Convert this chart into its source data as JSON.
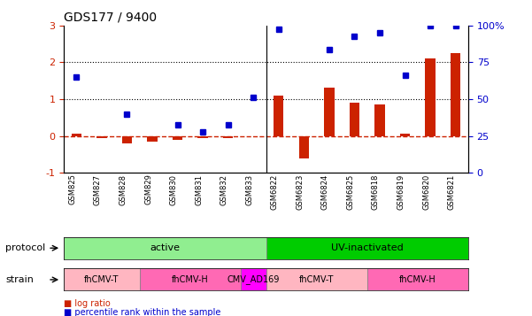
{
  "title": "GDS177 / 9400",
  "samples": [
    "GSM825",
    "GSM827",
    "GSM828",
    "GSM829",
    "GSM830",
    "GSM831",
    "GSM832",
    "GSM833",
    "GSM6822",
    "GSM6823",
    "GSM6824",
    "GSM6825",
    "GSM6818",
    "GSM6819",
    "GSM6820",
    "GSM6821"
  ],
  "log_ratio": [
    0.05,
    -0.05,
    -0.2,
    -0.15,
    -0.1,
    -0.05,
    -0.05,
    0.0,
    1.1,
    -0.6,
    1.3,
    0.9,
    0.85,
    0.05,
    2.1,
    2.25
  ],
  "pct_rank": [
    1.6,
    null,
    0.6,
    null,
    0.3,
    0.1,
    0.3,
    1.05,
    2.9,
    null,
    2.35,
    2.7,
    2.8,
    1.65,
    3.0,
    3.0
  ],
  "ylim": [
    -1,
    3
  ],
  "y2lim": [
    0,
    100
  ],
  "yticks": [
    -1,
    0,
    1,
    2,
    3
  ],
  "y2ticks": [
    0,
    25,
    50,
    75,
    100
  ],
  "y2ticklabels": [
    "0",
    "25",
    "50",
    "75",
    "100%"
  ],
  "hlines": [
    1.0,
    2.0
  ],
  "protocol_groups": [
    {
      "label": "active",
      "start": 0,
      "end": 7,
      "color": "#90EE90"
    },
    {
      "label": "UV-inactivated",
      "start": 8,
      "end": 15,
      "color": "#00CC00"
    }
  ],
  "strain_groups": [
    {
      "label": "fhCMV-T",
      "start": 0,
      "end": 2,
      "color": "#FFB6C1"
    },
    {
      "label": "fhCMV-H",
      "start": 3,
      "end": 6,
      "color": "#FF69B4"
    },
    {
      "label": "CMV_AD169",
      "start": 7,
      "end": 7,
      "color": "#FF00FF"
    },
    {
      "label": "fhCMV-T",
      "start": 8,
      "end": 11,
      "color": "#FFB6C1"
    },
    {
      "label": "fhCMV-H",
      "start": 12,
      "end": 15,
      "color": "#FF69B4"
    }
  ],
  "bar_color": "#CC2200",
  "dot_color": "#0000CC",
  "zero_line_color": "#CC2200",
  "axis_label_color_left": "#CC2200",
  "axis_label_color_right": "#0000CC",
  "legend_items": [
    {
      "label": "log ratio",
      "color": "#CC2200"
    },
    {
      "label": "percentile rank within the sample",
      "color": "#0000CC"
    }
  ]
}
